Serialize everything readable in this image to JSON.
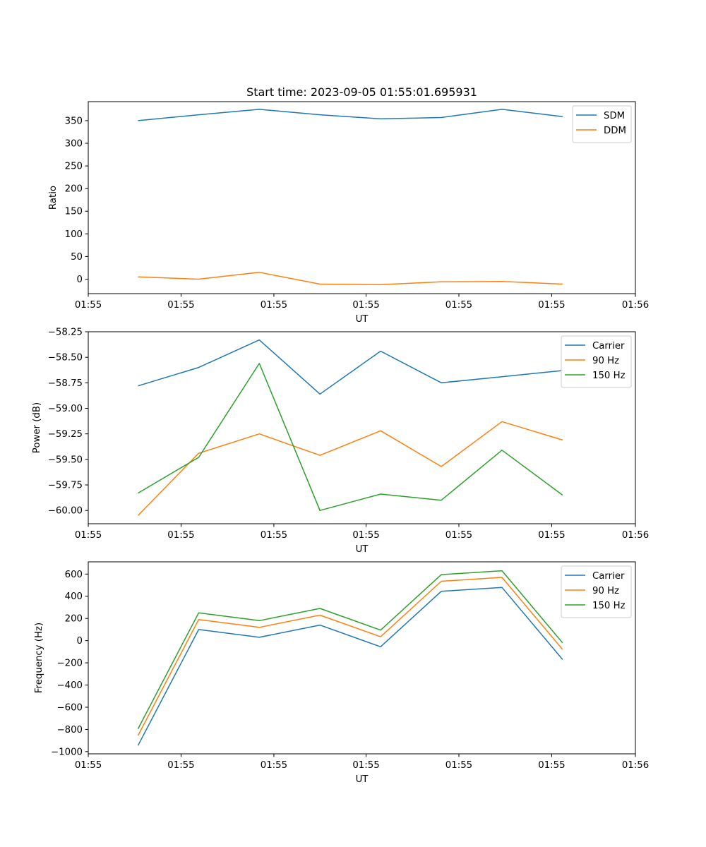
{
  "title": "Start time: 2023-09-05 01:55:01.695931",
  "chart_data": [
    {
      "type": "line",
      "title": "Start time: 2023-09-05 01:55:01.695931",
      "xlabel": "UT",
      "ylabel": "Ratio",
      "x": [
        1,
        2,
        3,
        4,
        5,
        6,
        7,
        8
      ],
      "xlim": [
        0.18,
        9.2
      ],
      "xticks": [
        0.18,
        1.71,
        3.24,
        4.76,
        6.29,
        7.82,
        9.2
      ],
      "xticklabels": [
        "01:55",
        "01:55",
        "01:55",
        "01:55",
        "01:55",
        "01:55",
        "01:56"
      ],
      "ylim": [
        -32,
        392
      ],
      "yticks": [
        0,
        50,
        100,
        150,
        200,
        250,
        300,
        350
      ],
      "yticklabels": [
        "0",
        "50",
        "100",
        "150",
        "200",
        "250",
        "300",
        "350"
      ],
      "series": [
        {
          "name": "SDM",
          "color": "#1f77b4",
          "values": [
            350,
            363,
            375,
            363,
            354,
            357,
            375,
            359
          ]
        },
        {
          "name": "DDM",
          "color": "#ff7f0e",
          "values": [
            5,
            0,
            15,
            -11,
            -12,
            -6,
            -5,
            -11
          ]
        }
      ],
      "legend": "top-right"
    },
    {
      "type": "line",
      "title": "",
      "xlabel": "UT",
      "ylabel": "Power (dB)",
      "x": [
        1,
        2,
        3,
        4,
        5,
        6,
        7,
        8
      ],
      "xlim": [
        0.18,
        9.2
      ],
      "xticks": [
        0.18,
        1.71,
        3.24,
        4.76,
        6.29,
        7.82,
        9.2
      ],
      "xticklabels": [
        "01:55",
        "01:55",
        "01:55",
        "01:55",
        "01:55",
        "01:55",
        "01:56"
      ],
      "ylim": [
        -60.13,
        -58.25
      ],
      "yticks": [
        -60.0,
        -59.75,
        -59.5,
        -59.25,
        -59.0,
        -58.75,
        -58.5,
        -58.25
      ],
      "yticklabels": [
        "−60.00",
        "−59.75",
        "−59.50",
        "−59.25",
        "−59.00",
        "−58.75",
        "−58.50",
        "−58.25"
      ],
      "series": [
        {
          "name": "Carrier",
          "color": "#1f77b4",
          "values": [
            -58.78,
            -58.6,
            -58.33,
            -58.86,
            -58.44,
            -58.75,
            -58.69,
            -58.63
          ]
        },
        {
          "name": "90 Hz",
          "color": "#ff7f0e",
          "values": [
            -60.05,
            -59.44,
            -59.25,
            -59.46,
            -59.22,
            -59.57,
            -59.13,
            -59.31
          ]
        },
        {
          "name": "150 Hz",
          "color": "#2ca02c",
          "values": [
            -59.83,
            -59.48,
            -58.56,
            -60.0,
            -59.84,
            -59.9,
            -59.41,
            -59.85
          ]
        }
      ],
      "legend": "top-right"
    },
    {
      "type": "line",
      "title": "",
      "xlabel": "UT",
      "ylabel": "Frequency (Hz)",
      "x": [
        1,
        2,
        3,
        4,
        5,
        6,
        7,
        8
      ],
      "xlim": [
        0.18,
        9.2
      ],
      "xticks": [
        0.18,
        1.71,
        3.24,
        4.76,
        6.29,
        7.82,
        9.2
      ],
      "xticklabels": [
        "01:55",
        "01:55",
        "01:55",
        "01:55",
        "01:55",
        "01:55",
        "01:56"
      ],
      "ylim": [
        -1020,
        710
      ],
      "yticks": [
        -1000,
        -800,
        -600,
        -400,
        -200,
        0,
        200,
        400,
        600
      ],
      "yticklabels": [
        "−1000",
        "−800",
        "−600",
        "−400",
        "−200",
        "0",
        "200",
        "400",
        "600"
      ],
      "series": [
        {
          "name": "Carrier",
          "color": "#1f77b4",
          "values": [
            -945,
            100,
            30,
            140,
            -55,
            445,
            480,
            -170
          ]
        },
        {
          "name": "90 Hz",
          "color": "#ff7f0e",
          "values": [
            -855,
            190,
            120,
            230,
            35,
            535,
            570,
            -80
          ]
        },
        {
          "name": "150 Hz",
          "color": "#2ca02c",
          "values": [
            -795,
            250,
            180,
            290,
            95,
            595,
            630,
            -20
          ]
        }
      ],
      "legend": "top-right"
    }
  ]
}
